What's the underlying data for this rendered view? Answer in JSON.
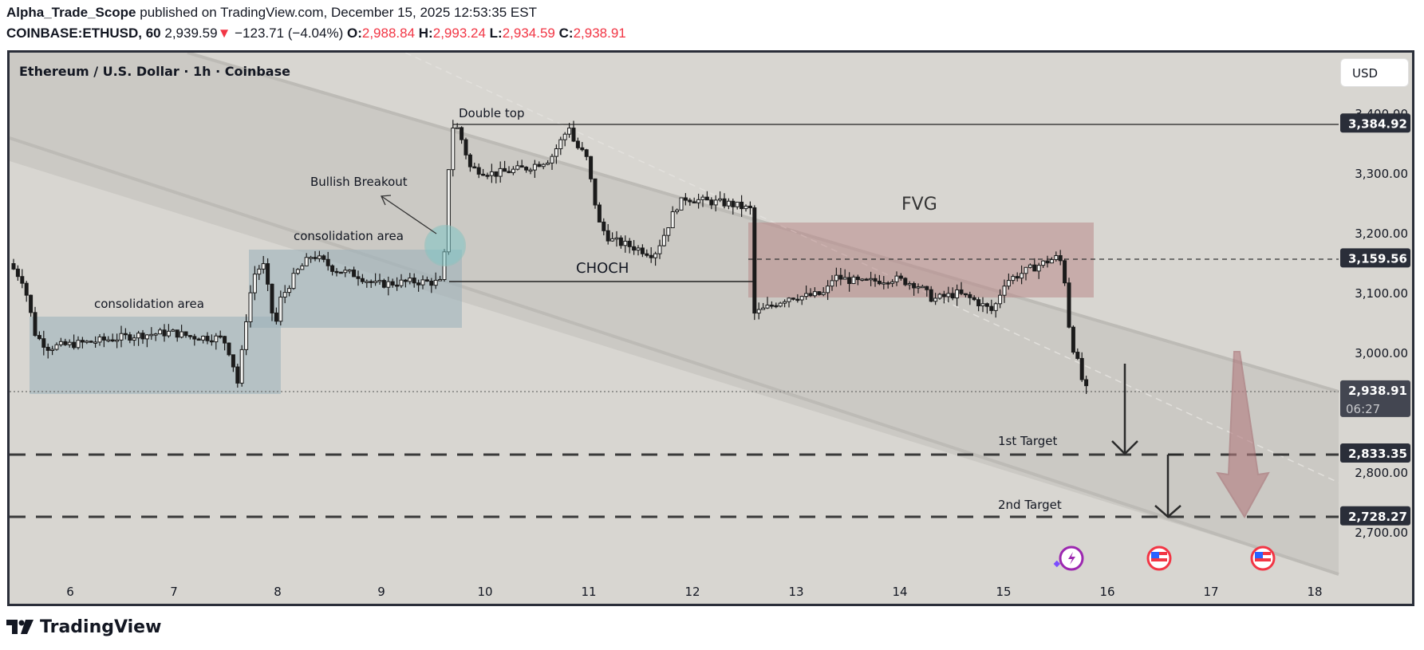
{
  "header": {
    "author": "Alpha_Trade_Scope",
    "published_text": " published on TradingView.com, December 15, 2025 12:53:35 EST",
    "symbol": "COINBASE:ETHUSD, 60",
    "last": "2,939.59",
    "change": "−123.71 (−4.04%)",
    "o_label": "O:",
    "o_value": "2,988.84",
    "h_label": "H:",
    "h_value": "2,993.24",
    "l_label": "L:",
    "l_value": "2,934.59",
    "c_label": "C:",
    "c_value": "2,938.91"
  },
  "chart": {
    "legend": "Ethereum / U.S. Dollar · 1h · Coinbase",
    "currency_button": "USD"
  },
  "footer": {
    "brand": "TradingView"
  },
  "colors": {
    "background": "#d8d6d1",
    "down": "#f23645",
    "fvg": "#b98a8a",
    "consolidation": "#9fb2ba",
    "label_bg": "#2a2e39",
    "current_price_bg": "#434651"
  },
  "chart_data": {
    "type": "candlestick",
    "title": "Ethereum / U.S. Dollar · 1h · Coinbase",
    "xlabel": "",
    "ylabel": "USD",
    "x_ticks": [
      "6",
      "7",
      "8",
      "9",
      "10",
      "11",
      "12",
      "13",
      "14",
      "15",
      "16",
      "17",
      "18"
    ],
    "y_ticks": [
      "3,400.00",
      "3,300.00",
      "3,200.00",
      "3,100.00",
      "3,000.00",
      "2,800.00",
      "2,700.00"
    ],
    "ylim": [
      2640,
      3490
    ],
    "price_labels": [
      {
        "value": "3,384.92",
        "price": 3384.92,
        "kind": "level"
      },
      {
        "value": "3,159.56",
        "price": 3159.56,
        "kind": "level"
      },
      {
        "value": "2,938.91",
        "price": 2938.91,
        "kind": "current",
        "countdown": "06:27"
      },
      {
        "value": "2,833.35",
        "price": 2833.35,
        "kind": "target"
      },
      {
        "value": "2,728.27",
        "price": 2728.27,
        "kind": "target"
      }
    ],
    "annotations": [
      {
        "text": "consolidation area",
        "type": "box",
        "x_range": [
          "Dec 5 18:00",
          "Dec 8 00:00"
        ],
        "price_range": [
          2940,
          3070
        ]
      },
      {
        "text": "consolidation area",
        "type": "box",
        "x_range": [
          "Dec 7 18:00",
          "Dec 9 18:00"
        ],
        "price_range": [
          3045,
          3175
        ]
      },
      {
        "text": "Bullish Breakout",
        "type": "arrow"
      },
      {
        "text": "Double top",
        "type": "hline",
        "price": 3384.92
      },
      {
        "text": "CHOCH",
        "type": "hline",
        "price": 3118
      },
      {
        "text": "FVG",
        "type": "box",
        "price_range": [
          3093,
          3218
        ]
      },
      {
        "text": "1st Target",
        "type": "hline",
        "price": 2833.35
      },
      {
        "text": "2nd Target",
        "type": "hline",
        "price": 2728.27
      }
    ],
    "series_daily_approx": [
      {
        "day": "5",
        "open": 3150,
        "close": 3120,
        "high": 3180,
        "low": 2985
      },
      {
        "day": "6",
        "open": 3020,
        "close": 3030,
        "high": 3070,
        "low": 2985
      },
      {
        "day": "7",
        "open": 3030,
        "close": 3000,
        "high": 3075,
        "low": 2910
      },
      {
        "day": "8",
        "open": 3000,
        "close": 3120,
        "high": 3190,
        "low": 2995
      },
      {
        "day": "9",
        "open": 3120,
        "close": 3120,
        "high": 3175,
        "low": 3080
      },
      {
        "day": "10",
        "open": 3120,
        "close": 3330,
        "high": 3395,
        "low": 3115
      },
      {
        "day": "11",
        "open": 3330,
        "close": 3230,
        "high": 3475,
        "low": 3175
      },
      {
        "day": "12",
        "open": 3230,
        "close": 3250,
        "high": 3290,
        "low": 3170
      },
      {
        "day": "13",
        "open": 3250,
        "close": 3100,
        "high": 3260,
        "low": 3045
      },
      {
        "day": "14",
        "open": 3100,
        "close": 3100,
        "high": 3130,
        "low": 3050
      },
      {
        "day": "15",
        "open": 3100,
        "close": 2939,
        "high": 3180,
        "low": 2934
      }
    ]
  }
}
